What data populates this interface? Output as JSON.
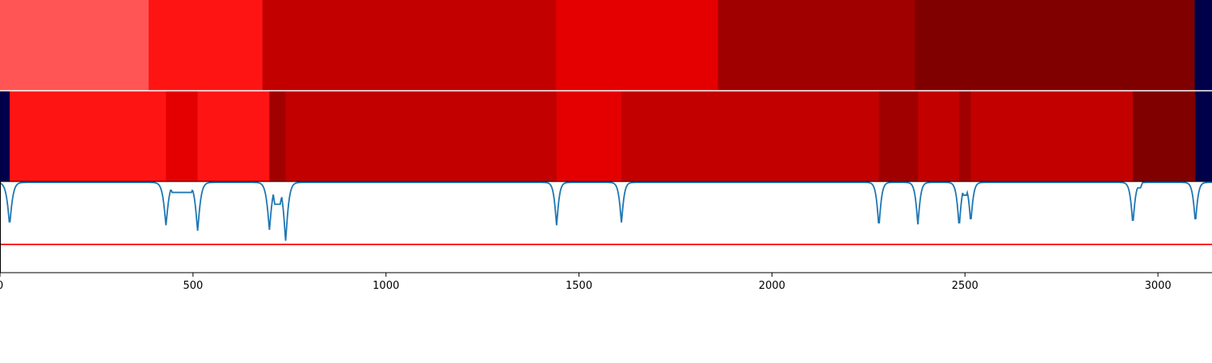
{
  "figure": {
    "background": "#ffffff",
    "axis_color": "#000000",
    "divider_color": "#ffffff"
  },
  "chart_data": [
    {
      "type": "heatmap",
      "row": "top",
      "description_colors": "segment fill colors from colormap (light red to dark red; navy for padding)",
      "xlim": [
        0,
        3140
      ],
      "segments": [
        {
          "start": 0,
          "end": 385,
          "color": "#ff5555"
        },
        {
          "start": 385,
          "end": 680,
          "color": "#ff1414"
        },
        {
          "start": 680,
          "end": 1440,
          "color": "#c20000"
        },
        {
          "start": 1440,
          "end": 1860,
          "color": "#e40000"
        },
        {
          "start": 1860,
          "end": 2370,
          "color": "#a10000"
        },
        {
          "start": 2370,
          "end": 3095,
          "color": "#800000"
        },
        {
          "start": 3095,
          "end": 3140,
          "color": "#00004a"
        }
      ]
    },
    {
      "type": "heatmap",
      "row": "middle",
      "xlim": [
        0,
        3140
      ],
      "segments": [
        {
          "start": 0,
          "end": 25,
          "color": "#00004a"
        },
        {
          "start": 25,
          "end": 430,
          "color": "#ff1414"
        },
        {
          "start": 430,
          "end": 512,
          "color": "#e40000"
        },
        {
          "start": 512,
          "end": 698,
          "color": "#ff1414"
        },
        {
          "start": 698,
          "end": 740,
          "color": "#a10000"
        },
        {
          "start": 740,
          "end": 1442,
          "color": "#c20000"
        },
        {
          "start": 1442,
          "end": 1610,
          "color": "#e40000"
        },
        {
          "start": 1610,
          "end": 2277,
          "color": "#c20000"
        },
        {
          "start": 2277,
          "end": 2378,
          "color": "#a10000"
        },
        {
          "start": 2378,
          "end": 2485,
          "color": "#c20000"
        },
        {
          "start": 2485,
          "end": 2515,
          "color": "#a10000"
        },
        {
          "start": 2515,
          "end": 2935,
          "color": "#c20000"
        },
        {
          "start": 2935,
          "end": 3097,
          "color": "#800000"
        },
        {
          "start": 3097,
          "end": 3140,
          "color": "#00004a"
        }
      ]
    },
    {
      "type": "line",
      "row": "bottom",
      "xlim": [
        0,
        3140
      ],
      "ylim": [
        0,
        1
      ],
      "baseline": 0.99,
      "threshold": 0.31,
      "line_color": "#1f77b4",
      "threshold_color": "#ff0000",
      "xticks": [
        0,
        500,
        1000,
        1500,
        2000,
        2500,
        3000
      ],
      "xtick_labels": [
        "0",
        "500",
        "1000",
        "1500",
        "2000",
        "2500",
        "3000"
      ],
      "dips": [
        {
          "x": 25,
          "min": 0.52,
          "width": 14
        },
        {
          "x": 430,
          "min": 0.52,
          "width": 14
        },
        {
          "x": 512,
          "min": 0.46,
          "width": 14
        },
        {
          "x": 698,
          "min": 0.47,
          "width": 14
        },
        {
          "x": 740,
          "min": 0.35,
          "width": 14
        },
        {
          "x": 1442,
          "min": 0.52,
          "width": 12
        },
        {
          "x": 1610,
          "min": 0.55,
          "width": 12
        },
        {
          "x": 2277,
          "min": 0.5,
          "width": 12
        },
        {
          "x": 2378,
          "min": 0.53,
          "width": 12
        },
        {
          "x": 2485,
          "min": 0.5,
          "width": 12
        },
        {
          "x": 2515,
          "min": 0.55,
          "width": 12
        },
        {
          "x": 2935,
          "min": 0.53,
          "width": 12
        },
        {
          "x": 3097,
          "min": 0.55,
          "width": 12
        }
      ],
      "plateaus": [
        {
          "from": 440,
          "to": 502,
          "value": 0.88
        },
        {
          "from": 706,
          "to": 732,
          "value": 0.75
        },
        {
          "from": 2490,
          "to": 2510,
          "value": 0.85
        },
        {
          "from": 2942,
          "to": 2960,
          "value": 0.93
        }
      ]
    }
  ]
}
